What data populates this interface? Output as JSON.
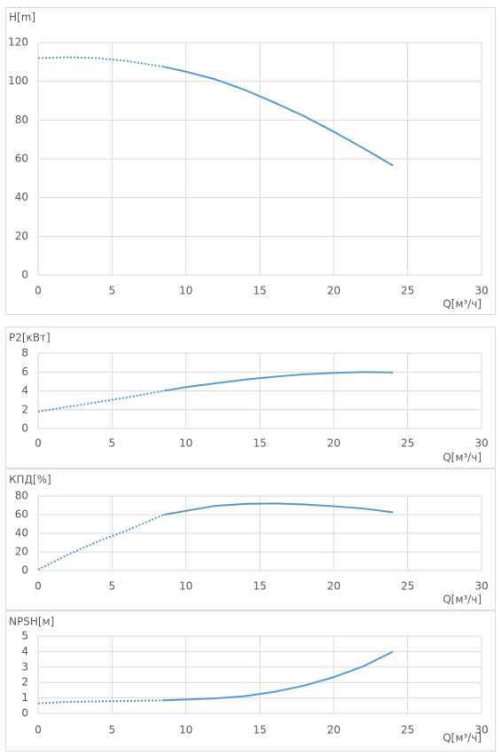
{
  "chart_data": [
    {
      "type": "line",
      "title": "H[m]",
      "x_label": "Q[м³/ч]",
      "x": [
        0,
        2,
        4,
        6,
        8.5,
        10,
        12,
        14,
        16,
        18,
        20,
        22,
        24
      ],
      "series": [
        {
          "color": "#5b9bd5",
          "style": "dotted",
          "values": [
            112,
            112.5,
            112,
            110.5,
            107.5,
            null,
            null,
            null,
            null,
            null,
            null,
            null,
            null
          ]
        },
        {
          "color": "#5b9bd5",
          "style": "solid",
          "values": [
            null,
            null,
            null,
            null,
            107.5,
            105,
            101,
            95.5,
            89,
            82,
            74,
            65.5,
            56.5
          ]
        }
      ],
      "xlim": [
        0,
        30
      ],
      "xticks": [
        0,
        5,
        10,
        15,
        20,
        25,
        30
      ],
      "ylim": [
        0,
        120
      ],
      "yticks": [
        0,
        20,
        40,
        60,
        80,
        100,
        120
      ],
      "grid": true
    },
    {
      "type": "line",
      "title": "P2[кВт]",
      "x_label": "Q[м³/ч]",
      "x": [
        0,
        2,
        4,
        6,
        8.5,
        10,
        12,
        14,
        16,
        18,
        20,
        22,
        24
      ],
      "series": [
        {
          "color": "#5b9bd5",
          "style": "dotted",
          "values": [
            1.8,
            2.3,
            2.8,
            3.3,
            4.0,
            null,
            null,
            null,
            null,
            null,
            null,
            null,
            null
          ]
        },
        {
          "color": "#5b9bd5",
          "style": "solid",
          "values": [
            null,
            null,
            null,
            null,
            4.0,
            4.4,
            4.8,
            5.2,
            5.5,
            5.75,
            5.9,
            6.0,
            5.95
          ]
        }
      ],
      "xlim": [
        0,
        30
      ],
      "xticks": [
        0,
        5,
        10,
        15,
        20,
        25,
        30
      ],
      "ylim": [
        0,
        8
      ],
      "yticks": [
        0,
        2,
        4,
        6,
        8
      ],
      "grid": true
    },
    {
      "type": "line",
      "title": "КПД[%]",
      "x_label": "Q[м³/ч]",
      "x": [
        0,
        2,
        4,
        6,
        8.5,
        10,
        12,
        14,
        16,
        18,
        20,
        22,
        24
      ],
      "series": [
        {
          "color": "#5b9bd5",
          "style": "dotted",
          "values": [
            1,
            17,
            31,
            43,
            60,
            null,
            null,
            null,
            null,
            null,
            null,
            null,
            null
          ]
        },
        {
          "color": "#5b9bd5",
          "style": "solid",
          "values": [
            null,
            null,
            null,
            null,
            60,
            64,
            69.5,
            71.5,
            72,
            71,
            69,
            66.5,
            62.5
          ]
        }
      ],
      "xlim": [
        0,
        30
      ],
      "xticks": [
        0,
        5,
        10,
        15,
        20,
        25,
        30
      ],
      "ylim": [
        0,
        80
      ],
      "yticks": [
        0,
        20,
        40,
        60,
        80
      ],
      "grid": true
    },
    {
      "type": "line",
      "title": "NPSH[м]",
      "x_label": "Q[м³/ч]",
      "x": [
        0,
        2,
        4,
        6,
        8.5,
        10,
        12,
        14,
        16,
        18,
        20,
        22,
        24
      ],
      "series": [
        {
          "color": "#5b9bd5",
          "style": "dotted",
          "values": [
            0.65,
            0.75,
            0.78,
            0.8,
            0.85,
            null,
            null,
            null,
            null,
            null,
            null,
            null,
            null
          ]
        },
        {
          "color": "#5b9bd5",
          "style": "solid",
          "values": [
            null,
            null,
            null,
            null,
            0.85,
            0.9,
            0.97,
            1.12,
            1.4,
            1.8,
            2.35,
            3.05,
            4.0
          ]
        }
      ],
      "xlim": [
        0,
        30
      ],
      "xticks": [
        0,
        5,
        10,
        15,
        20,
        25,
        30
      ],
      "ylim": [
        0,
        5
      ],
      "yticks": [
        0,
        1,
        2,
        3,
        4,
        5
      ],
      "grid": true
    }
  ]
}
